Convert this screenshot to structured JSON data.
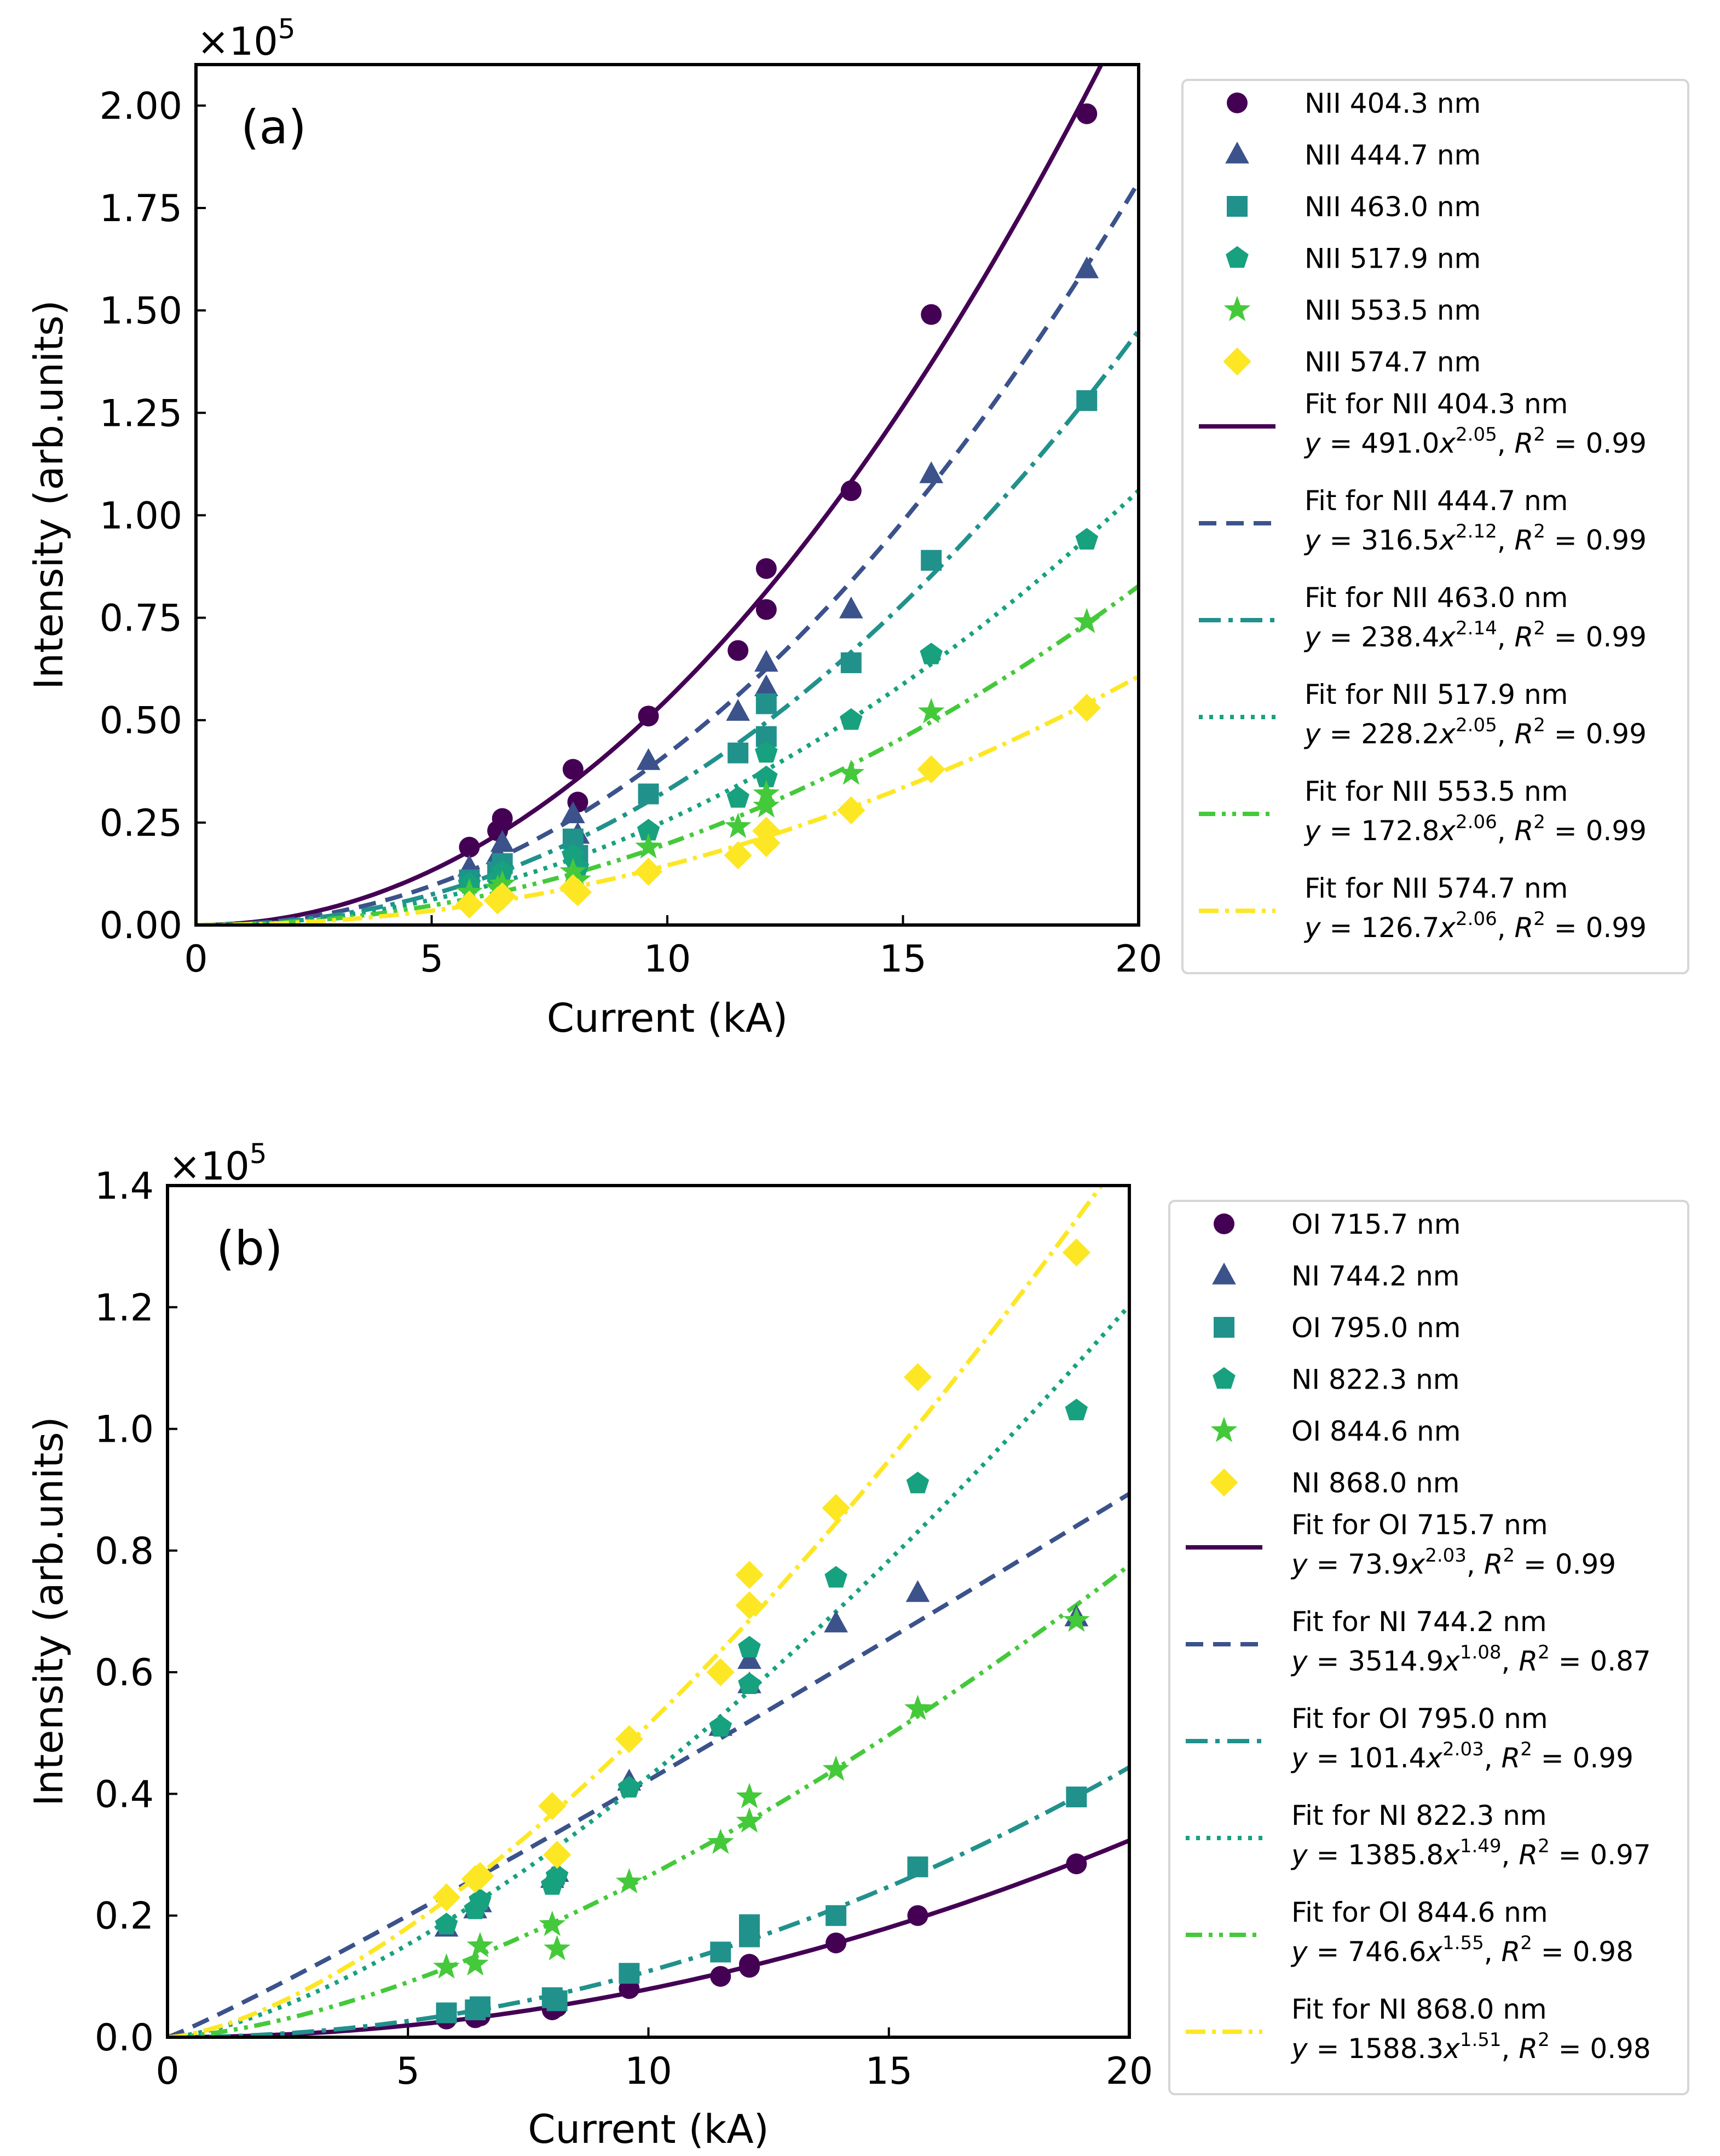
{
  "chart_data": [
    {
      "type": "scatter",
      "panel_label": "(a)",
      "xlabel": "Current (kA)",
      "ylabel": "Intensity (arb.units)",
      "y_multiplier": {
        "base": "×10",
        "exp": "5"
      },
      "xlim": [
        0,
        20
      ],
      "ylim": [
        0,
        2.1
      ],
      "xticks": [
        0,
        5,
        10,
        15,
        20
      ],
      "xtick_labels": [
        "0",
        "5",
        "10",
        "15",
        "20"
      ],
      "yticks": [
        0,
        0.25,
        0.5,
        0.75,
        1.0,
        1.25,
        1.5,
        1.75,
        2.0
      ],
      "ytick_labels": [
        "0.00",
        "0.25",
        "0.50",
        "0.75",
        "1.00",
        "1.25",
        "1.50",
        "1.75",
        "2.00"
      ],
      "legend_position": "outside-right",
      "series": [
        {
          "name": "NII 404.3 nm",
          "marker": "circle",
          "color": "#440154",
          "x": [
            5.8,
            6.4,
            6.5,
            8.0,
            8.1,
            9.6,
            11.5,
            12.1,
            12.1,
            13.9,
            15.6,
            18.9
          ],
          "y": [
            0.19,
            0.23,
            0.26,
            0.38,
            0.3,
            0.51,
            0.67,
            0.77,
            0.87,
            1.06,
            1.49,
            1.98
          ],
          "fit": {
            "label": "Fit for NII 404.3 nm",
            "a": 491.0,
            "b": 2.05,
            "coef": "491.0",
            "exp": "2.05",
            "r2": "0.99",
            "dash": "none"
          }
        },
        {
          "name": "NII 444.7 nm",
          "marker": "triangle",
          "color": "#3b528b",
          "x": [
            5.8,
            6.4,
            6.5,
            8.0,
            8.1,
            9.6,
            11.5,
            12.1,
            12.1,
            13.9,
            15.6,
            18.9
          ],
          "y": [
            0.14,
            0.17,
            0.2,
            0.27,
            0.22,
            0.4,
            0.52,
            0.58,
            0.64,
            0.77,
            1.1,
            1.6
          ],
          "fit": {
            "label": "Fit for NII 444.7 nm",
            "a": 316.5,
            "b": 2.12,
            "coef": "316.5",
            "exp": "2.12",
            "r2": "0.99",
            "dash": "32,18"
          }
        },
        {
          "name": "NII 463.0 nm",
          "marker": "square",
          "color": "#21918c",
          "x": [
            5.8,
            6.4,
            6.5,
            8.0,
            8.1,
            9.6,
            11.5,
            12.1,
            12.1,
            13.9,
            15.6,
            18.9
          ],
          "y": [
            0.11,
            0.13,
            0.15,
            0.21,
            0.17,
            0.32,
            0.42,
            0.46,
            0.54,
            0.64,
            0.89,
            1.28
          ],
          "fit": {
            "label": "Fit for NII 463.0 nm",
            "a": 238.4,
            "b": 2.14,
            "coef": "238.4",
            "exp": "2.14",
            "r2": "0.99",
            "dash": "40,14,8,14"
          }
        },
        {
          "name": "NII 517.9 nm",
          "marker": "pentagon",
          "color": "#17a17f",
          "x": [
            5.8,
            6.4,
            6.5,
            8.0,
            8.1,
            9.6,
            11.5,
            12.1,
            12.1,
            13.9,
            15.6,
            18.9
          ],
          "y": [
            0.1,
            0.11,
            0.13,
            0.17,
            0.14,
            0.23,
            0.31,
            0.36,
            0.42,
            0.5,
            0.66,
            0.94
          ],
          "fit": {
            "label": "Fit for NII 517.9 nm",
            "a": 228.2,
            "b": 2.05,
            "coef": "228.2",
            "exp": "2.05",
            "r2": "0.99",
            "dash": "7,12"
          }
        },
        {
          "name": "NII 553.5 nm",
          "marker": "star",
          "color": "#44c93a",
          "x": [
            5.8,
            6.4,
            6.5,
            8.0,
            8.1,
            9.6,
            11.5,
            12.1,
            12.1,
            13.9,
            15.6,
            18.9
          ],
          "y": [
            0.08,
            0.09,
            0.1,
            0.13,
            0.11,
            0.19,
            0.24,
            0.29,
            0.32,
            0.37,
            0.52,
            0.74
          ],
          "fit": {
            "label": "Fit for NII 553.5 nm",
            "a": 172.8,
            "b": 2.06,
            "coef": "172.8",
            "exp": "2.06",
            "r2": "0.99",
            "dash": "30,12,7,12,7,12"
          }
        },
        {
          "name": "NII 574.7 nm",
          "marker": "diamond",
          "color": "#fde725",
          "x": [
            5.8,
            6.4,
            6.5,
            8.0,
            8.1,
            9.6,
            11.5,
            12.1,
            12.1,
            13.9,
            15.6,
            18.9
          ],
          "y": [
            0.05,
            0.06,
            0.07,
            0.09,
            0.08,
            0.13,
            0.17,
            0.2,
            0.23,
            0.28,
            0.38,
            0.53
          ],
          "fit": {
            "label": "Fit for NII 574.7 nm",
            "a": 126.7,
            "b": 2.06,
            "coef": "126.7",
            "exp": "2.06",
            "r2": "0.99",
            "dash": "36,12,7,12"
          }
        }
      ]
    },
    {
      "type": "scatter",
      "panel_label": "(b)",
      "xlabel": "Current (kA)",
      "ylabel": "Intensity (arb.units)",
      "y_multiplier": {
        "base": "×10",
        "exp": "5"
      },
      "xlim": [
        0,
        20
      ],
      "ylim": [
        0,
        1.4
      ],
      "xticks": [
        0,
        5,
        10,
        15,
        20
      ],
      "xtick_labels": [
        "0",
        "5",
        "10",
        "15",
        "20"
      ],
      "yticks": [
        0,
        0.2,
        0.4,
        0.6,
        0.8,
        1.0,
        1.2,
        1.4
      ],
      "ytick_labels": [
        "0.0",
        "0.2",
        "0.4",
        "0.6",
        "0.8",
        "1.0",
        "1.2",
        "1.4"
      ],
      "legend_position": "outside-right",
      "series": [
        {
          "name": "OI 715.7 nm",
          "marker": "circle",
          "color": "#440154",
          "x": [
            5.8,
            6.4,
            6.5,
            8.0,
            8.1,
            9.6,
            11.5,
            12.1,
            12.1,
            13.9,
            15.6,
            18.9
          ],
          "y": [
            0.03,
            0.032,
            0.035,
            0.045,
            0.05,
            0.08,
            0.1,
            0.115,
            0.12,
            0.155,
            0.2,
            0.285
          ],
          "fit": {
            "label": "Fit for OI 715.7 nm",
            "a": 73.9,
            "b": 2.03,
            "coef": "73.9",
            "exp": "2.03",
            "r2": "0.99",
            "dash": "none"
          }
        },
        {
          "name": "NI 744.2 nm",
          "marker": "triangle",
          "color": "#3b528b",
          "x": [
            5.8,
            6.4,
            6.5,
            8.0,
            8.1,
            9.6,
            11.5,
            12.1,
            12.1,
            13.9,
            15.6,
            18.9
          ],
          "y": [
            0.18,
            0.21,
            0.22,
            0.26,
            0.27,
            0.42,
            0.51,
            0.58,
            0.62,
            0.68,
            0.73,
            0.69
          ],
          "fit": {
            "label": "Fit for NI 744.2 nm",
            "a": 3514.9,
            "b": 1.08,
            "coef": "3514.9",
            "exp": "1.08",
            "r2": "0.87",
            "dash": "32,18"
          }
        },
        {
          "name": "OI 795.0 nm",
          "marker": "square",
          "color": "#21918c",
          "x": [
            5.8,
            6.4,
            6.5,
            8.0,
            8.1,
            9.6,
            11.5,
            12.1,
            12.1,
            13.9,
            15.6,
            18.9
          ],
          "y": [
            0.04,
            0.045,
            0.05,
            0.065,
            0.06,
            0.105,
            0.14,
            0.165,
            0.185,
            0.2,
            0.28,
            0.395
          ],
          "fit": {
            "label": "Fit for OI 795.0 nm",
            "a": 101.4,
            "b": 2.03,
            "coef": "101.4",
            "exp": "2.03",
            "r2": "0.99",
            "dash": "40,14,8,14"
          }
        },
        {
          "name": "NI 822.3 nm",
          "marker": "pentagon",
          "color": "#17a17f",
          "x": [
            5.8,
            6.4,
            6.5,
            8.0,
            8.1,
            9.6,
            11.5,
            12.1,
            12.1,
            13.9,
            15.6,
            18.9
          ],
          "y": [
            0.185,
            0.21,
            0.225,
            0.25,
            0.265,
            0.41,
            0.51,
            0.58,
            0.64,
            0.755,
            0.91,
            1.03
          ],
          "fit": {
            "label": "Fit for NI 822.3 nm",
            "a": 1385.8,
            "b": 1.49,
            "coef": "1385.8",
            "exp": "1.49",
            "r2": "0.97",
            "dash": "7,12"
          }
        },
        {
          "name": "OI 844.6 nm",
          "marker": "star",
          "color": "#44c93a",
          "x": [
            5.8,
            6.4,
            6.5,
            8.0,
            8.1,
            9.6,
            11.5,
            12.1,
            12.1,
            13.9,
            15.6,
            18.9
          ],
          "y": [
            0.115,
            0.12,
            0.15,
            0.185,
            0.145,
            0.255,
            0.32,
            0.355,
            0.395,
            0.44,
            0.54,
            0.685
          ],
          "fit": {
            "label": "Fit for OI 844.6 nm",
            "a": 746.6,
            "b": 1.55,
            "coef": "746.6",
            "exp": "1.55",
            "r2": "0.98",
            "dash": "30,12,7,12,7,12"
          }
        },
        {
          "name": "NI 868.0 nm",
          "marker": "diamond",
          "color": "#fde725",
          "x": [
            5.8,
            6.4,
            6.5,
            8.0,
            8.1,
            9.6,
            11.5,
            12.1,
            12.1,
            13.9,
            15.6,
            18.9
          ],
          "y": [
            0.23,
            0.26,
            0.265,
            0.38,
            0.3,
            0.49,
            0.6,
            0.71,
            0.76,
            0.87,
            1.085,
            1.29
          ],
          "fit": {
            "label": "Fit for NI 868.0 nm",
            "a": 1588.3,
            "b": 1.51,
            "coef": "1588.3",
            "exp": "1.51",
            "r2": "0.98",
            "dash": "36,12,7,12"
          }
        }
      ]
    }
  ]
}
